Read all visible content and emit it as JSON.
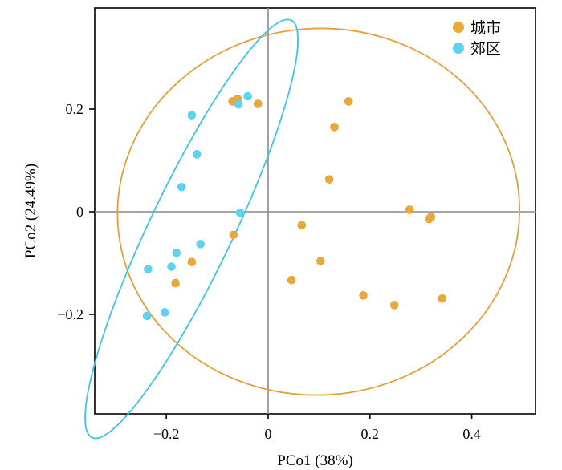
{
  "chart_data": {
    "type": "scatter",
    "xlabel": "PCo1 (38%)",
    "ylabel": "PCo2 (24.49%)",
    "xlim": [
      -0.34,
      0.52
    ],
    "ylim": [
      -0.4,
      0.4
    ],
    "xticks": [
      -0.2,
      0,
      0.2,
      0.4
    ],
    "xtick_labels": [
      "−0.2",
      "0",
      "0.2",
      "0.4"
    ],
    "yticks": [
      -0.2,
      0,
      0.2
    ],
    "ytick_labels": [
      "−0.2",
      "0",
      "0.2"
    ],
    "zero_lines": true,
    "grid": false,
    "legend_position": "top-right",
    "series": [
      {
        "name": "城市",
        "color": "#E8A93A",
        "ellipse_color": "#E3A03A",
        "points": [
          [
            -0.07,
            0.215
          ],
          [
            -0.06,
            0.22
          ],
          [
            -0.02,
            0.21
          ],
          [
            0.158,
            0.215
          ],
          [
            0.13,
            0.165
          ],
          [
            0.12,
            0.063
          ],
          [
            0.278,
            0.004
          ],
          [
            0.32,
            -0.01
          ],
          [
            0.316,
            -0.014
          ],
          [
            0.066,
            -0.026
          ],
          [
            -0.068,
            -0.045
          ],
          [
            -0.15,
            -0.098
          ],
          [
            -0.182,
            -0.139
          ],
          [
            0.103,
            -0.096
          ],
          [
            0.046,
            -0.133
          ],
          [
            0.187,
            -0.163
          ],
          [
            0.248,
            -0.182
          ],
          [
            0.342,
            -0.169
          ]
        ],
        "ellipse": {
          "cx": 0.099,
          "cy": 0.0,
          "rx": 0.395,
          "ry": 0.357,
          "angle_deg": -3.5
        }
      },
      {
        "name": "郊区",
        "color": "#5FD3EE",
        "ellipse_color": "#3FC4E2",
        "points": [
          [
            -0.04,
            0.225
          ],
          [
            -0.058,
            0.209
          ],
          [
            -0.15,
            0.188
          ],
          [
            -0.14,
            0.112
          ],
          [
            -0.17,
            0.048
          ],
          [
            -0.055,
            -0.002
          ],
          [
            -0.133,
            -0.063
          ],
          [
            -0.18,
            -0.08
          ],
          [
            -0.19,
            -0.107
          ],
          [
            -0.236,
            -0.112
          ],
          [
            -0.203,
            -0.196
          ],
          [
            -0.238,
            -0.203
          ]
        ],
        "ellipse": {
          "cx": -0.1505,
          "cy": -0.0335,
          "rx": 0.4545,
          "ry": 0.0808,
          "angle_deg": -64.5
        }
      }
    ]
  }
}
